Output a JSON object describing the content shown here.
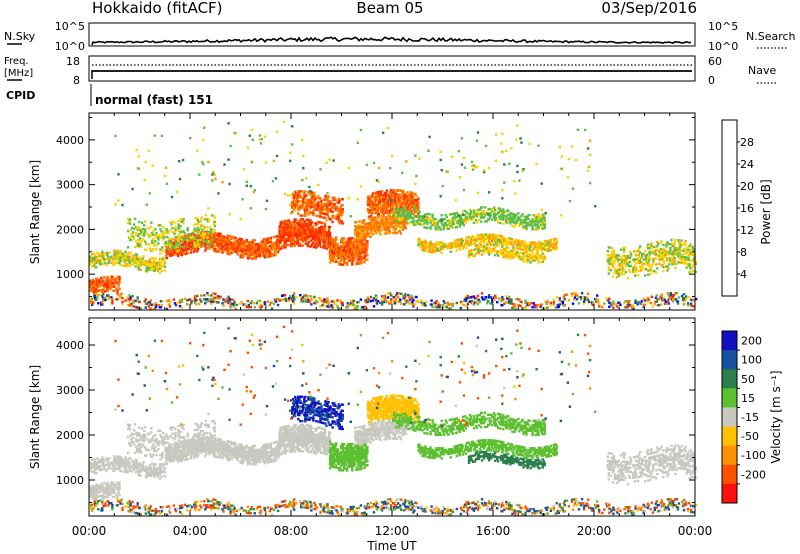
{
  "header": {
    "station": "Hokkaido (fitACF)",
    "beam": "Beam 05",
    "date": "03/Sep/2016"
  },
  "noise_panel": {
    "left_label": "N.Sky",
    "right_label": "N.Search",
    "left_ticks": [
      "10^5",
      "10^0"
    ],
    "right_ticks": [
      "10^5",
      "10^0"
    ]
  },
  "freq_panel": {
    "left_label_1": "Freq.",
    "left_label_2": "[MHz]",
    "right_label": "Nave",
    "left_ticks": [
      "18",
      "8"
    ],
    "right_ticks": [
      "60",
      "0"
    ]
  },
  "cpid": {
    "label": "CPID",
    "text": "normal (fast) 151"
  },
  "colors": {
    "power": [
      "#0000ff",
      "#1a3fa8",
      "#2a7f4a",
      "#5cbf4a",
      "#ffd000",
      "#ffa000",
      "#ff7000",
      "#ff2a00"
    ],
    "velocity": [
      "#1010c0",
      "#1a50a0",
      "#2a7f4a",
      "#5cc030",
      "#c8c8c0",
      "#ffc000",
      "#ff9000",
      "#ff5000",
      "#ff1010"
    ]
  },
  "chart_data": [
    {
      "type": "heatmap",
      "name_hint": "power",
      "ylabel": "Slant Range [km]",
      "yticks": [
        "1000",
        "2000",
        "3000",
        "4000"
      ],
      "ylim": [
        200,
        4600
      ],
      "xlim": [
        0,
        24
      ],
      "xticks": [
        "00:00",
        "04:00",
        "08:00",
        "12:00",
        "16:00",
        "20:00",
        "00:00"
      ],
      "colorbar_label": "Power [dB]",
      "colorbar_ticks": [
        "4",
        "8",
        "12",
        "16",
        "20",
        "24",
        "28"
      ],
      "colorbar_range": [
        0,
        30
      ]
    },
    {
      "type": "heatmap",
      "name_hint": "velocity",
      "ylabel": "Slant Range [km]",
      "yticks": [
        "1000",
        "2000",
        "3000",
        "4000"
      ],
      "ylim": [
        200,
        4600
      ],
      "xlim": [
        0,
        24
      ],
      "xticks": [
        "00:00",
        "04:00",
        "08:00",
        "12:00",
        "16:00",
        "20:00",
        "00:00"
      ],
      "xlabel": "Time UT",
      "colorbar_label": "Velocity [m s⁻¹]",
      "colorbar_ticks": [
        "200",
        "100",
        "50",
        "15",
        "-15",
        "-50",
        "-100",
        "-200"
      ],
      "colorbar_range": [
        -250,
        250
      ]
    }
  ]
}
